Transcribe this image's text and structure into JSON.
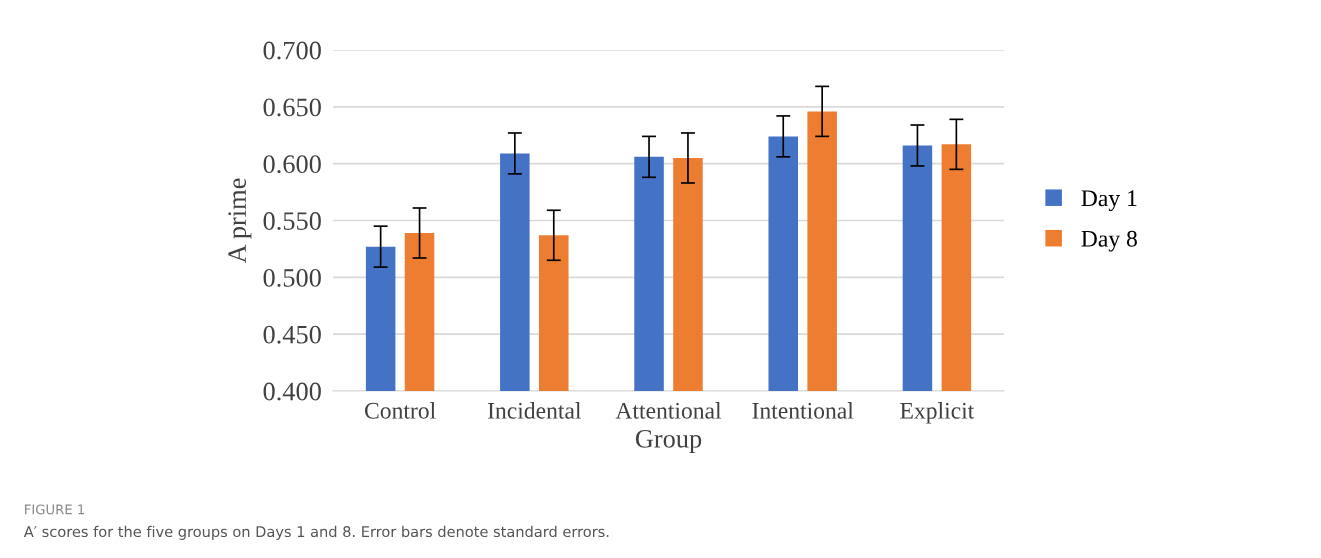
{
  "chart_data": {
    "type": "bar",
    "xlabel": "Group",
    "ylabel": "A prime",
    "categories": [
      "Control",
      "Incidental",
      "Attentional",
      "Intentional",
      "Explicit"
    ],
    "series": [
      {
        "name": "Day 1",
        "color": "#4472c4",
        "values": [
          0.527,
          0.609,
          0.606,
          0.624,
          0.616
        ],
        "errors": [
          0.018,
          0.018,
          0.018,
          0.018,
          0.018
        ]
      },
      {
        "name": "Day 8",
        "color": "#ed7d31",
        "values": [
          0.539,
          0.537,
          0.605,
          0.646,
          0.617
        ],
        "errors": [
          0.022,
          0.022,
          0.022,
          0.022,
          0.022
        ]
      }
    ],
    "ylim": [
      0.4,
      0.7
    ],
    "yticks": [
      {
        "value": 0.4,
        "label": "0.400"
      },
      {
        "value": 0.45,
        "label": "0.450"
      },
      {
        "value": 0.5,
        "label": "0.500"
      },
      {
        "value": 0.55,
        "label": "0.550"
      },
      {
        "value": 0.6,
        "label": "0.600"
      },
      {
        "value": 0.65,
        "label": "0.650"
      },
      {
        "value": 0.7,
        "label": "0.700"
      }
    ],
    "grid": "y",
    "legend": "right",
    "annotations": [
      "FIGURE 1",
      "A′ scores for the five groups on Days 1 and 8. Error bars denote standard errors."
    ]
  }
}
